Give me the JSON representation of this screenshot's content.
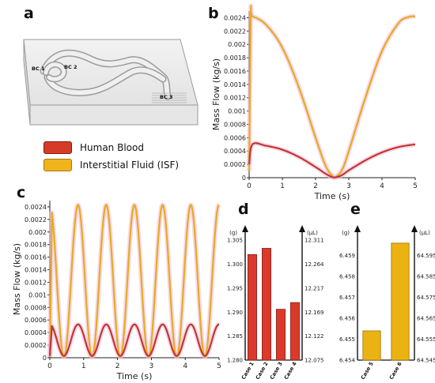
{
  "panels": {
    "a": "a",
    "b": "b",
    "c": "c",
    "d": "d",
    "e": "e"
  },
  "geometry_labels": {
    "bc1": "BC 1",
    "bc2": "BC 2",
    "bc3": "BC 3"
  },
  "legend": [
    {
      "label": "Human Blood",
      "color": "#d63b28"
    },
    {
      "label": "Interstitial Fluid (ISF)",
      "color": "#f0b41c"
    }
  ],
  "colors": {
    "blood": "#c0392b",
    "isf": "#e5ad1a",
    "isf_bar": "#ebb312",
    "blood_bar": "#d93a2b",
    "glow": "#f4b8e2"
  },
  "chart_data": [
    {
      "id": "b",
      "type": "line",
      "xlabel": "Time (s)",
      "ylabel": "Mass Flow (kg/s)",
      "xlim": [
        0,
        5
      ],
      "ylim": [
        0,
        0.0025
      ],
      "xticks": [
        0,
        1,
        2,
        3,
        4,
        5
      ],
      "yticks": [
        0,
        0.0002,
        0.0004,
        0.0006,
        0.0008,
        0.001,
        0.0012,
        0.0014,
        0.0016,
        0.0018,
        0.002,
        0.0022,
        0.0024
      ],
      "ytick_labels": [
        "0",
        "0.0002",
        "0.0004",
        "0.0006",
        "0.0008",
        "0.001",
        "0.0012",
        "0.0014",
        "0.0016",
        "0.0018",
        "0.002",
        "0.0022",
        "0.0024"
      ],
      "grid": false,
      "series": [
        {
          "name": "Human Blood",
          "x": [
            0,
            0.1,
            0.5,
            1,
            1.5,
            2,
            2.3,
            2.5,
            2.6,
            2.8,
            3,
            3.5,
            4,
            4.5,
            5
          ],
          "y": [
            0.0002,
            0.0005,
            0.00048,
            0.00042,
            0.00031,
            0.00016,
            6e-05,
            1e-05,
            5e-06,
            4e-05,
            0.00011,
            0.00026,
            0.00038,
            0.00046,
            0.0005
          ]
        },
        {
          "name": "Interstitial Fluid (ISF)",
          "x": [
            0,
            0.05,
            0.1,
            0.5,
            1,
            1.5,
            2,
            2.3,
            2.5,
            2.6,
            2.8,
            3,
            3.5,
            4,
            4.5,
            4.8,
            5
          ],
          "y": [
            0.0001,
            0.0024,
            0.00242,
            0.0023,
            0.00195,
            0.00135,
            0.0006,
            0.00018,
            3e-05,
            1e-05,
            0.00012,
            0.0004,
            0.0012,
            0.0019,
            0.00232,
            0.00241,
            0.00242
          ]
        }
      ]
    },
    {
      "id": "c",
      "type": "line",
      "xlabel": "Time (s)",
      "ylabel": "Mass Flow (kg/s)",
      "xlim": [
        0,
        5
      ],
      "ylim": [
        0,
        0.0025
      ],
      "xticks": [
        0,
        1,
        2,
        3,
        4,
        5
      ],
      "yticks": [
        0,
        0.0002,
        0.0004,
        0.0006,
        0.0008,
        0.001,
        0.0012,
        0.0014,
        0.0016,
        0.0018,
        0.002,
        0.0022,
        0.0024
      ],
      "ytick_labels": [
        "0",
        "0.0002",
        "0.0004",
        "0.0006",
        "0.0008",
        "0.001",
        "0.0012",
        "0.0014",
        "0.0016",
        "0.0018",
        "0.002",
        "0.0022",
        "0.0024"
      ],
      "grid": false,
      "period": 0.833,
      "series": [
        {
          "name": "Human Blood",
          "amplitude": 0.0005,
          "offset": 3e-05
        },
        {
          "name": "Interstitial Fluid (ISF)",
          "amplitude": 0.00242,
          "offset": 1e-05
        }
      ]
    },
    {
      "id": "d",
      "type": "bar",
      "left_unit": "(g)",
      "right_unit": "(μL)",
      "categories": [
        "Case 1",
        "Case 2",
        "Case 3",
        "Case 4"
      ],
      "values": [
        1.302,
        1.3033,
        1.2906,
        1.292
      ],
      "ylim": [
        1.28,
        1.307
      ],
      "left_ticks": [
        "1.280",
        "1.285",
        "1.290",
        "1.295",
        "1.300",
        "1.305"
      ],
      "left_tick_values": [
        1.28,
        1.285,
        1.29,
        1.295,
        1.3,
        1.305
      ],
      "right_ticks": [
        "12.075",
        "12.122",
        "12.169",
        "12.217",
        "12.264",
        "12.311"
      ]
    },
    {
      "id": "e",
      "type": "bar",
      "left_unit": "(g)",
      "right_unit": "(μL)",
      "categories": [
        "Case 5",
        "Case 6"
      ],
      "values": [
        6.4554,
        6.4596
      ],
      "ylim": [
        6.454,
        6.4602
      ],
      "left_ticks": [
        "6.454",
        "6.455",
        "6.456",
        "6.457",
        "6.458",
        "6.459"
      ],
      "left_tick_values": [
        6.454,
        6.455,
        6.456,
        6.457,
        6.458,
        6.459
      ],
      "right_ticks": [
        "64.545",
        "64.555",
        "64.565",
        "64.575",
        "64.585",
        "64.595"
      ]
    }
  ]
}
